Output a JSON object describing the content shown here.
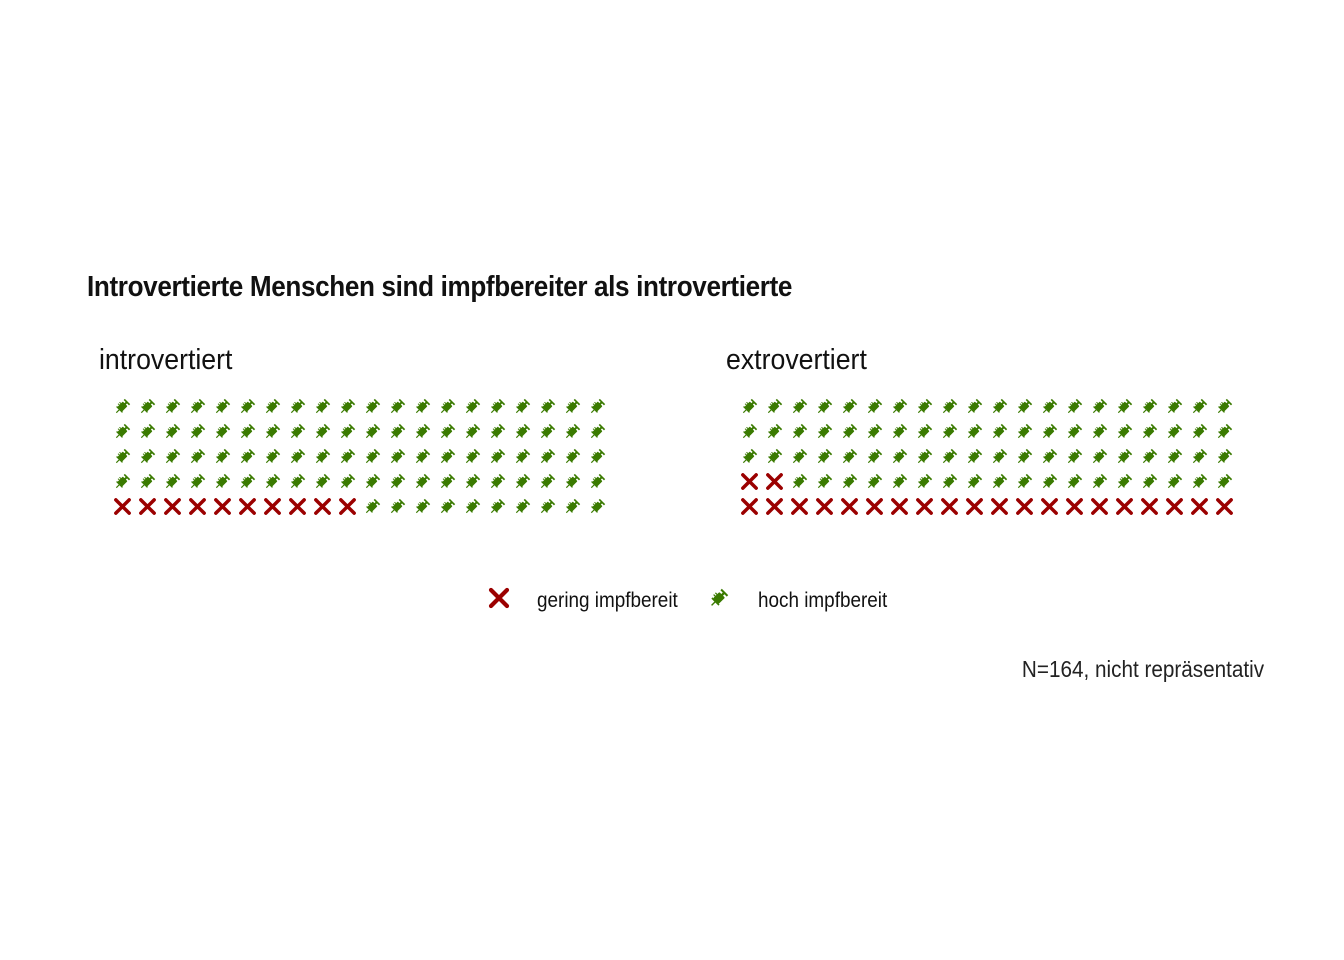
{
  "chart_data": {
    "type": "waffle",
    "title": "Introvertierte Menschen sind impfbereiter als introvertierte",
    "caption": "N=164, nicht repräsentativ",
    "colors": {
      "gering": "#9b0000",
      "hoch": "#3a7a00"
    },
    "icons": {
      "gering": "x-cross-icon",
      "hoch": "syringe-icon"
    },
    "legend": {
      "position": "bottom",
      "items": [
        {
          "key": "gering",
          "label": "gering impfbereit"
        },
        {
          "key": "hoch",
          "label": "hoch impfbereit"
        }
      ]
    },
    "panels": [
      {
        "name": "introvertiert",
        "rows": 5,
        "cols": 20,
        "counts": {
          "gering": 10,
          "hoch": 90
        }
      },
      {
        "name": "extrovertiert",
        "rows": 5,
        "cols": 20,
        "counts": {
          "gering": 22,
          "hoch": 78
        }
      }
    ]
  }
}
